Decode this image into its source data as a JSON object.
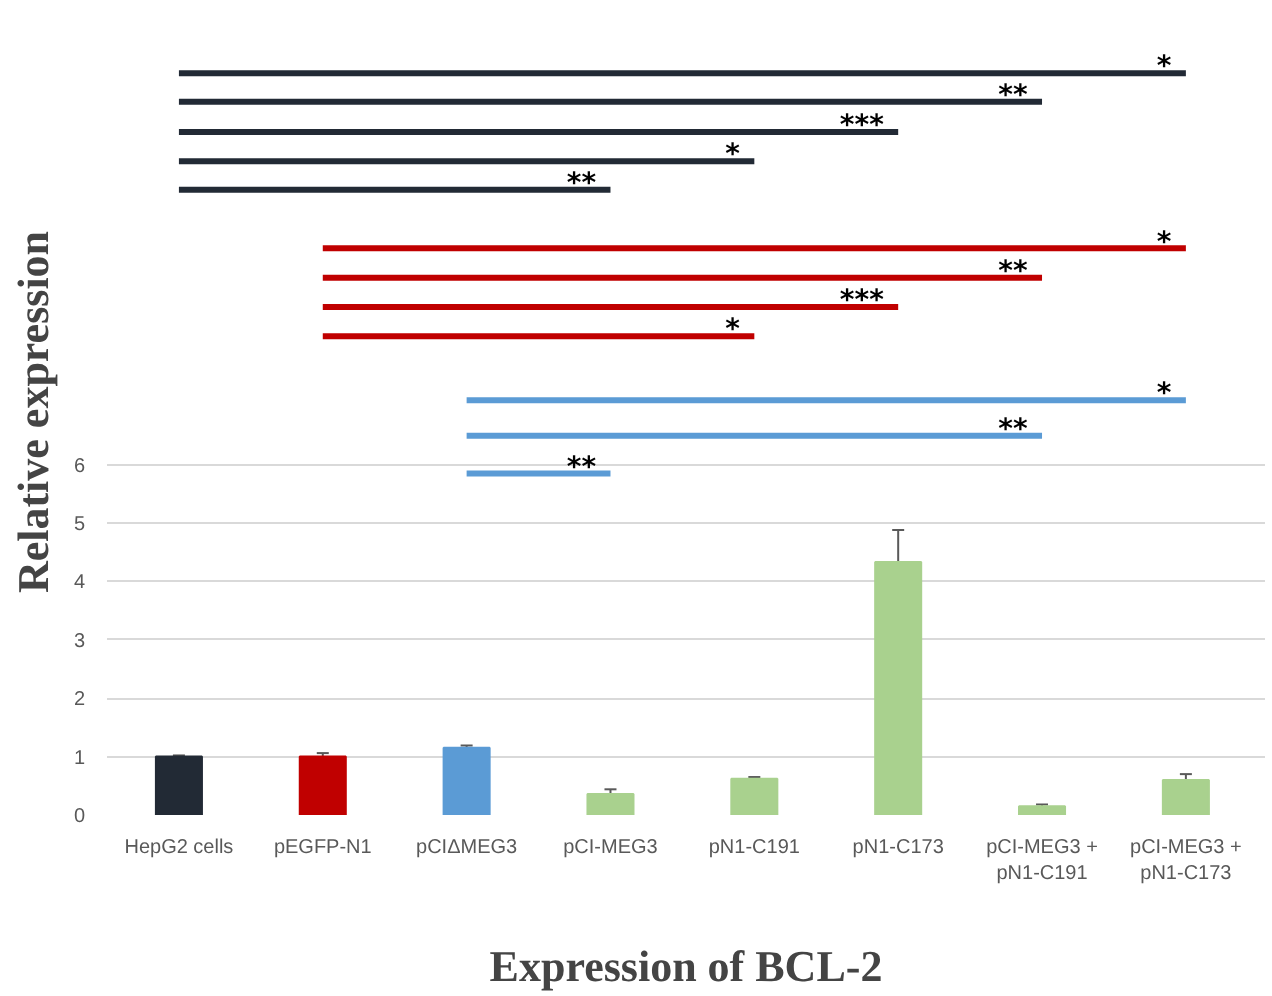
{
  "chart_data": {
    "type": "bar",
    "xlabel": "Expression of BCL-2",
    "ylabel": "Relative expression",
    "categories": [
      "HepG2 cells",
      "pEGFP-N1",
      "pCIΔMEG3",
      "pCI-MEG3",
      "pN1-C191",
      "pN1-C173",
      "pCI-MEG3 +\npN1-C191",
      "pCI-MEG3 +\npN1-C173"
    ],
    "values": [
      1.0,
      1.0,
      1.15,
      0.36,
      0.62,
      4.33,
      0.15,
      0.6
    ],
    "errors": [
      0.02,
      0.06,
      0.04,
      0.08,
      0.03,
      0.55,
      0.03,
      0.1
    ],
    "colors": [
      "#222a35",
      "#c00000",
      "#5b9bd5",
      "#a9d18e",
      "#a9d18e",
      "#a9d18e",
      "#a9d18e",
      "#a9d18e"
    ],
    "ylim": [
      0,
      6
    ],
    "yticks": [
      0,
      1,
      2,
      3,
      4,
      5,
      6
    ],
    "grid": "y",
    "annotations": [
      "*",
      "**",
      "***",
      "*",
      "**",
      "*",
      "**",
      "***",
      "*",
      "*",
      "**",
      "**"
    ]
  }
}
